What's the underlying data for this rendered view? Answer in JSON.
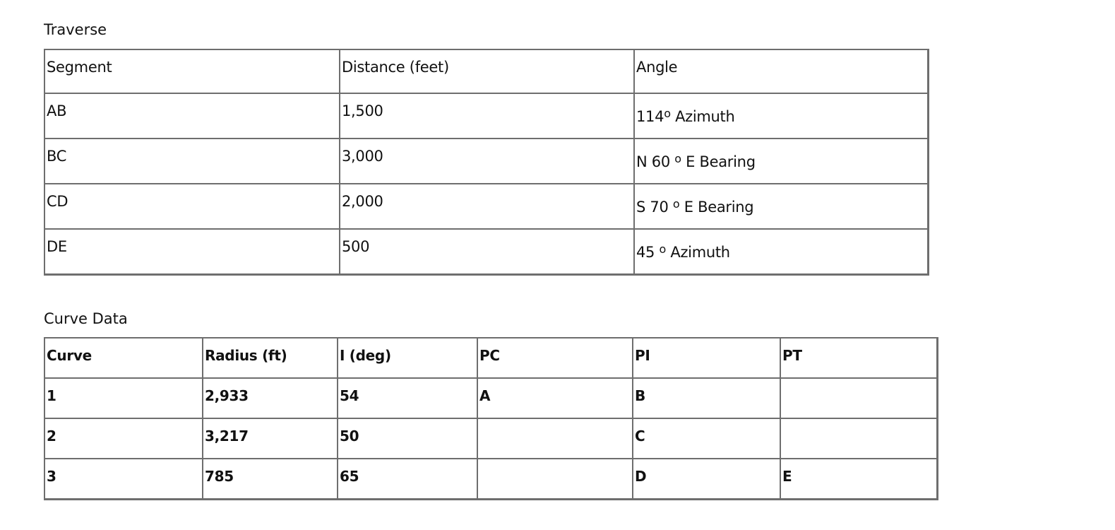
{
  "traverse": {
    "caption": "Traverse",
    "headers": [
      "Segment",
      "Distance (feet)",
      "Angle"
    ],
    "rows": [
      {
        "segment": "AB",
        "distance": "1,500",
        "angle_value": "114",
        "degree_mark": "o",
        "angle_rest": " Azimuth"
      },
      {
        "segment": "BC",
        "distance": "3,000",
        "angle_value": "N 60 ",
        "degree_mark": "o",
        "angle_rest": " E Bearing"
      },
      {
        "segment": "CD",
        "distance": "2,000",
        "angle_value": "S 70 ",
        "degree_mark": "o",
        "angle_rest": " E Bearing"
      },
      {
        "segment": "DE",
        "distance": "500",
        "angle_value": "45 ",
        "degree_mark": "o",
        "angle_rest": " Azimuth"
      }
    ]
  },
  "curve_data": {
    "caption": "Curve Data",
    "headers": [
      "Curve",
      "Radius (ft)",
      "I (deg)",
      "PC",
      "PI",
      "PT"
    ],
    "rows": [
      [
        "1",
        "2,933",
        "54",
        "A",
        "B",
        ""
      ],
      [
        "2",
        "3,217",
        "50",
        "",
        "C",
        ""
      ],
      [
        "3",
        "785",
        "65",
        "",
        "D",
        "E"
      ]
    ]
  }
}
